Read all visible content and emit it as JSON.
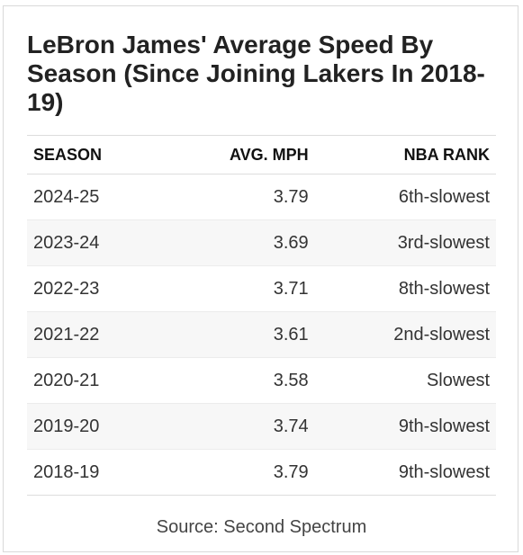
{
  "title": "LeBron James' Average Speed By Season (Since Joining Lakers In 2018-19)",
  "source": "Source: Second Spectrum",
  "chart_data": {
    "type": "table",
    "title": "LeBron James' Average Speed By Season (Since Joining Lakers In 2018-19)",
    "columns": [
      "SEASON",
      "AVG. MPH",
      "NBA RANK"
    ],
    "rows": [
      [
        "2024-25",
        "3.79",
        "6th-slowest"
      ],
      [
        "2023-24",
        "3.69",
        "3rd-slowest"
      ],
      [
        "2022-23",
        "3.71",
        "8th-slowest"
      ],
      [
        "2021-22",
        "3.61",
        "2nd-slowest"
      ],
      [
        "2020-21",
        "3.58",
        "Slowest"
      ],
      [
        "2019-20",
        "3.74",
        "9th-slowest"
      ],
      [
        "2018-19",
        "3.79",
        "9th-slowest"
      ]
    ]
  }
}
